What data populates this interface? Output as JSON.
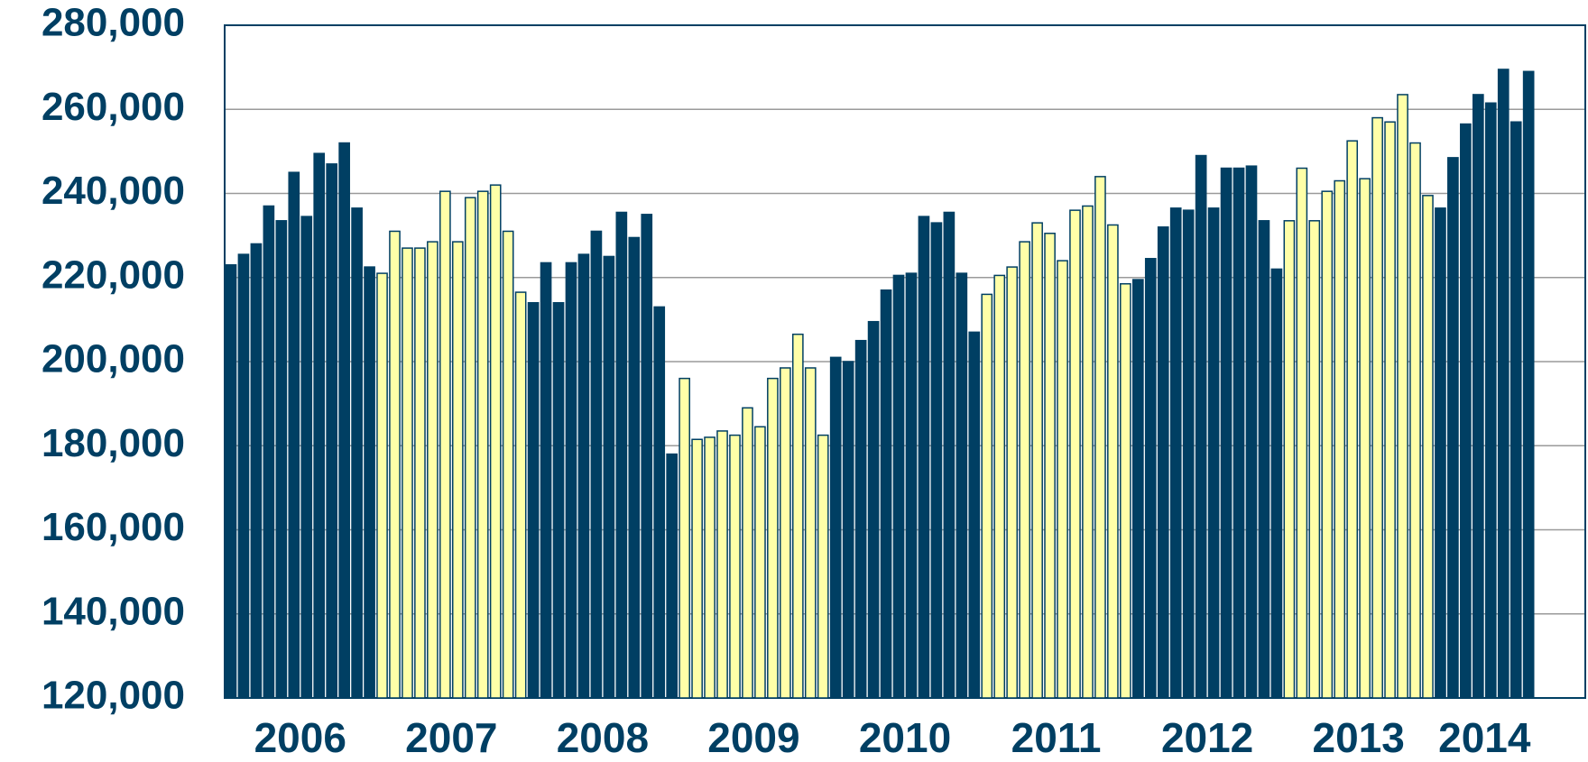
{
  "chart_data": {
    "type": "bar",
    "ylim": [
      120000,
      280000
    ],
    "yticks": [
      {
        "value": 120000,
        "label": "120,000"
      },
      {
        "value": 140000,
        "label": "140,000"
      },
      {
        "value": 160000,
        "label": "160,000"
      },
      {
        "value": 180000,
        "label": "180,000"
      },
      {
        "value": 200000,
        "label": "200,000"
      },
      {
        "value": 220000,
        "label": "220,000"
      },
      {
        "value": 240000,
        "label": "240,000"
      },
      {
        "value": 260000,
        "label": "260,000"
      },
      {
        "value": 280000,
        "label": "280,000"
      }
    ],
    "grid": true,
    "series": [
      {
        "name": "2006",
        "color": "#003f63",
        "values": [
          223000,
          225500,
          228000,
          237000,
          233500,
          245000,
          234500,
          249500,
          247000,
          252000,
          236500,
          222500
        ]
      },
      {
        "name": "2007",
        "color": "#ffffa8",
        "values": [
          221000,
          231000,
          227000,
          227000,
          228500,
          240500,
          228500,
          239000,
          240500,
          242000,
          231000,
          216500
        ]
      },
      {
        "name": "2008",
        "color": "#003f63",
        "values": [
          214000,
          223500,
          214000,
          223500,
          225500,
          231000,
          225000,
          235500,
          229500,
          235000,
          213000,
          178000
        ]
      },
      {
        "name": "2009",
        "color": "#ffffa8",
        "values": [
          196000,
          181500,
          182000,
          183500,
          182500,
          189000,
          184500,
          196000,
          198500,
          206500,
          198500,
          182500
        ]
      },
      {
        "name": "2010",
        "color": "#003f63",
        "values": [
          201000,
          200000,
          205000,
          209500,
          217000,
          220500,
          221000,
          234500,
          233000,
          235500,
          221000,
          207000
        ]
      },
      {
        "name": "2011",
        "color": "#ffffa8",
        "values": [
          216000,
          220500,
          222500,
          228500,
          233000,
          230500,
          224000,
          236000,
          237000,
          244000,
          232500,
          218500
        ]
      },
      {
        "name": "2012",
        "color": "#003f63",
        "values": [
          219500,
          224500,
          232000,
          236500,
          236000,
          249000,
          236500,
          246000,
          246000,
          246500,
          233500,
          222000
        ]
      },
      {
        "name": "2013",
        "color": "#ffffa8",
        "values": [
          233500,
          246000,
          233500,
          240500,
          243000,
          252500,
          243500,
          258000,
          257000,
          263500,
          252000,
          239500
        ]
      },
      {
        "name": "2014",
        "color": "#003f63",
        "values": [
          236500,
          248500,
          256500,
          263500,
          261500,
          269500,
          257000,
          269000
        ]
      }
    ]
  }
}
